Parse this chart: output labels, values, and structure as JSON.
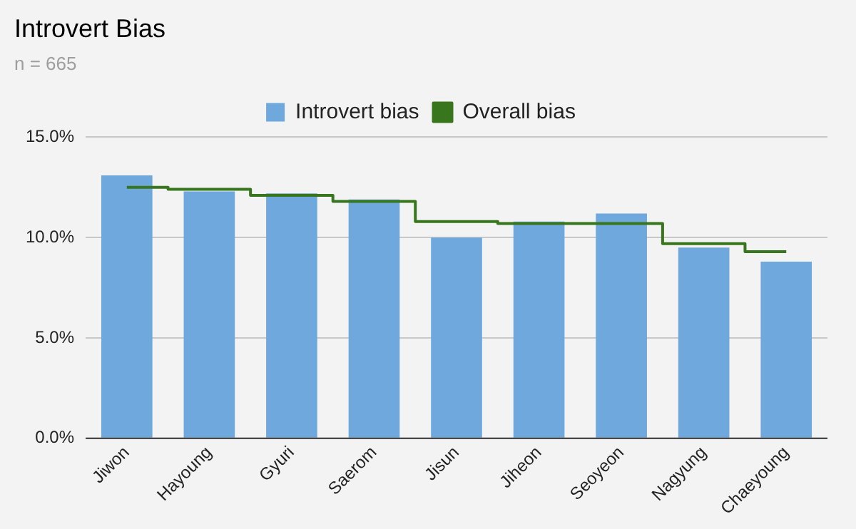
{
  "chart_data": {
    "type": "bar",
    "title": "Introvert Bias",
    "subtitle": "n = 665",
    "categories": [
      "Jiwon",
      "Hayoung",
      "Gyuri",
      "Saerom",
      "Jisun",
      "Jiheon",
      "Seoyeon",
      "Nagyung",
      "Chaeyoung"
    ],
    "series": [
      {
        "name": "Introvert bias",
        "color": "#6fa8dc",
        "values": [
          13.1,
          12.3,
          12.2,
          11.9,
          10.0,
          10.8,
          11.2,
          9.5,
          8.8
        ]
      },
      {
        "name": "Overall bias",
        "type": "step",
        "color": "#38761d",
        "values": [
          12.5,
          12.4,
          12.1,
          11.8,
          10.8,
          10.7,
          10.7,
          9.7,
          9.3
        ]
      }
    ],
    "ylim": [
      0,
      15
    ],
    "yticks": [
      {
        "value": 0,
        "label": "0.0%"
      },
      {
        "value": 5,
        "label": "5.0%"
      },
      {
        "value": 10,
        "label": "10.0%"
      },
      {
        "value": 15,
        "label": "15.0%"
      }
    ],
    "grid": "y",
    "legend": "top"
  }
}
